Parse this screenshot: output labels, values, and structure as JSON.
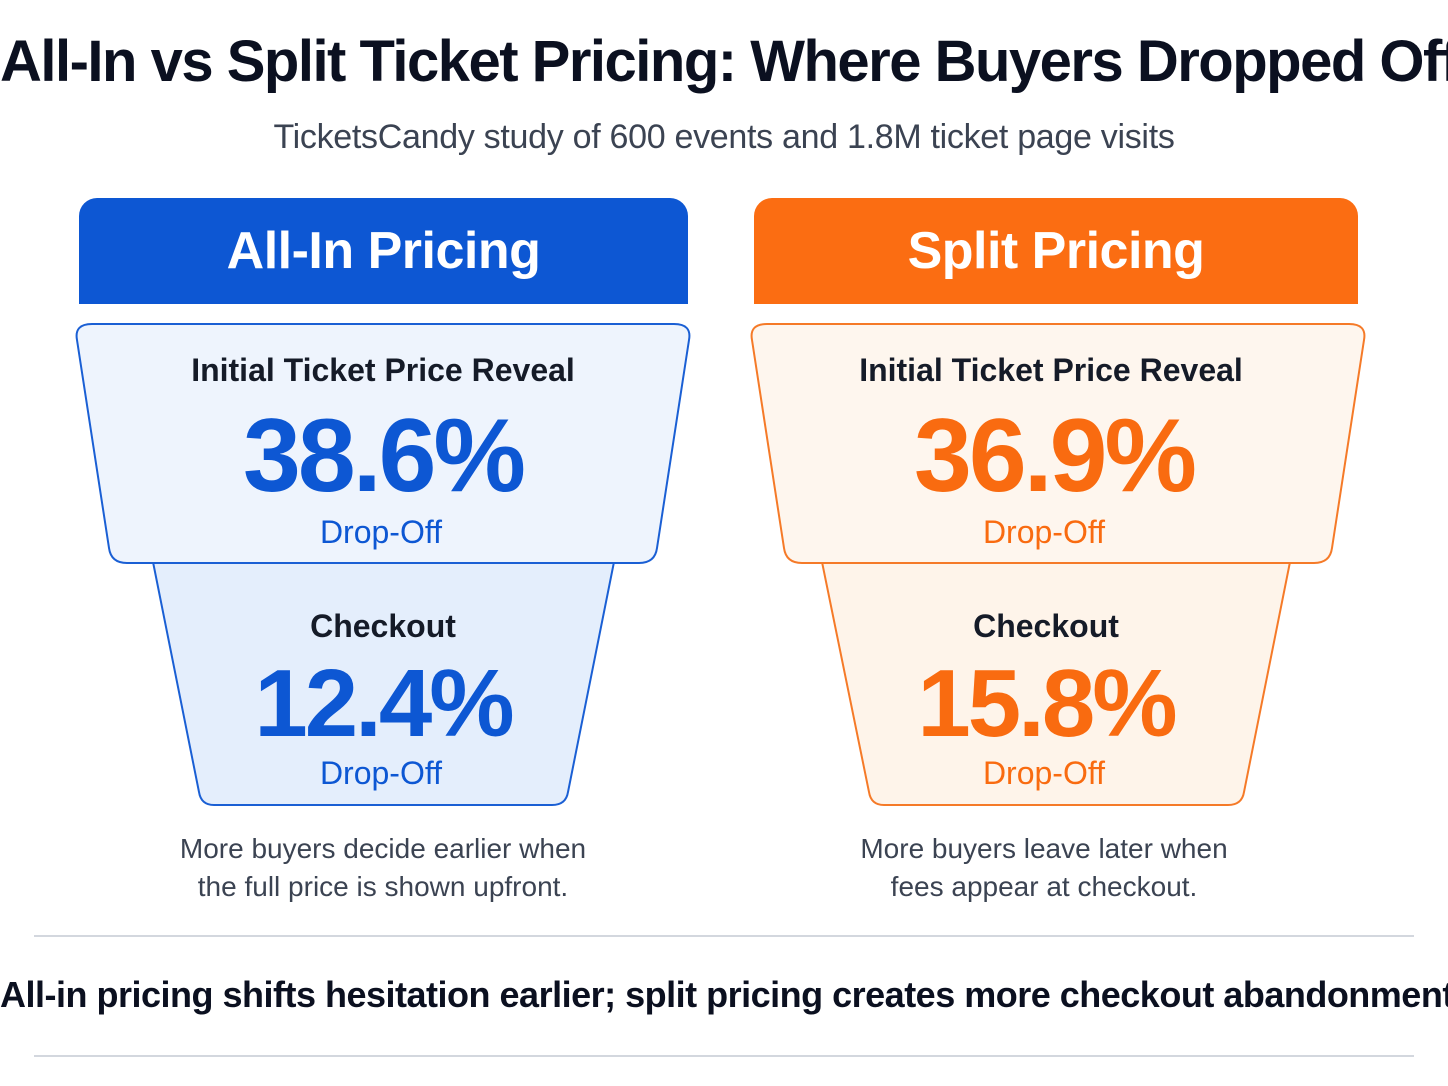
{
  "title": "All-In vs Split Ticket Pricing: Where Buyers Dropped Off",
  "subtitle": "TicketsCandy study of 600 events and 1.8M ticket page visits",
  "colors": {
    "all_in_accent": "#0d57d3",
    "all_in_fill": "#eaf2fd",
    "split_accent": "#fb6d12",
    "split_fill": "#fef3ea",
    "divider": "#d3d7de"
  },
  "panels": {
    "all_in": {
      "header": "All-In Pricing",
      "stage1": {
        "label": "Initial Ticket Price Reveal",
        "value": "38.6%",
        "sub": "Drop-Off"
      },
      "stage2": {
        "label": "Checkout",
        "value": "12.4%",
        "sub": "Drop-Off"
      },
      "note_line1": "More buyers decide earlier when",
      "note_line2": "the full price is shown upfront."
    },
    "split": {
      "header": "Split Pricing",
      "stage1": {
        "label": "Initial Ticket Price Reveal",
        "value": "36.9%",
        "sub": "Drop-Off"
      },
      "stage2": {
        "label": "Checkout",
        "value": "15.8%",
        "sub": "Drop-Off"
      },
      "note_line1": "More buyers leave later when",
      "note_line2": "fees appear at checkout."
    }
  },
  "conclusion": "All-in pricing shifts hesitation earlier; split pricing creates more checkout abandonment."
}
